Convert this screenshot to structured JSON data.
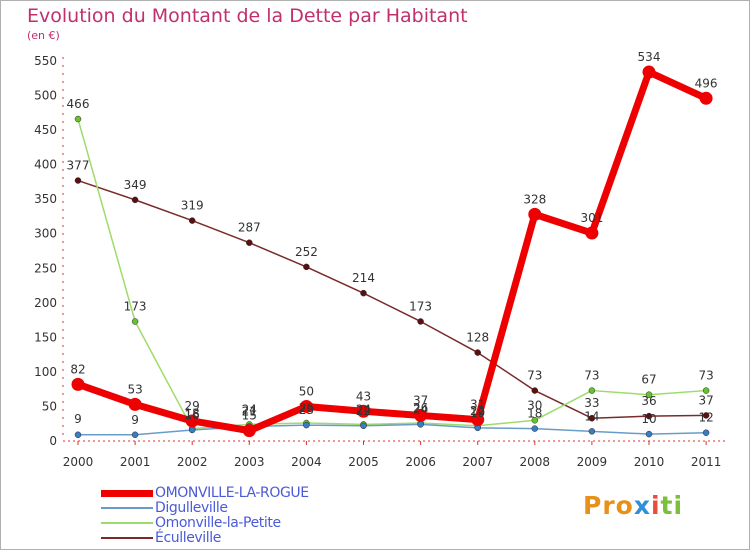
{
  "chart_data": {
    "type": "line",
    "title": "Evolution du Montant de la Dette par Habitant",
    "subtitle": "(en €)",
    "xlabel": "",
    "ylabel": "",
    "categories": [
      "2000",
      "2001",
      "2002",
      "2003",
      "2004",
      "2005",
      "2006",
      "2007",
      "2008",
      "2009",
      "2010",
      "2011"
    ],
    "ylim": [
      0,
      550
    ],
    "yticks": [
      0,
      50,
      100,
      150,
      200,
      250,
      300,
      350,
      400,
      450,
      500,
      550
    ],
    "grid": false,
    "legend_position": "bottom-left",
    "series": [
      {
        "name": "Éculleville",
        "color": "#7a2a2a",
        "marker": "#5a1010",
        "width": 1.5,
        "values": [
          377,
          349,
          319,
          287,
          252,
          214,
          173,
          128,
          73,
          33,
          36,
          37
        ]
      },
      {
        "name": "Omonville-la-Petite",
        "color": "#9edc6a",
        "marker": "#66c22e",
        "width": 1.5,
        "values": [
          466,
          173,
          18,
          24,
          26,
          24,
          26,
          22,
          30,
          73,
          67,
          73
        ]
      },
      {
        "name": "Digulleville",
        "color": "#6a9cc8",
        "marker": "#3a7cc0",
        "width": 1.5,
        "values": [
          9,
          9,
          16,
          21,
          23,
          22,
          24,
          19,
          18,
          14,
          10,
          12
        ]
      },
      {
        "name": "OMONVILLE-LA-ROGUE",
        "color": "#ee0000",
        "marker": "#ee0000",
        "width": 7,
        "values": [
          82,
          53,
          29,
          15,
          50,
          43,
          37,
          31,
          328,
          301,
          534,
          496
        ]
      }
    ],
    "data_labels": [
      {
        "series": 0,
        "index": 0,
        "text": "377"
      },
      {
        "series": 0,
        "index": 1,
        "text": "349"
      },
      {
        "series": 0,
        "index": 2,
        "text": "319"
      },
      {
        "series": 0,
        "index": 3,
        "text": "287"
      },
      {
        "series": 0,
        "index": 4,
        "text": "252"
      },
      {
        "series": 0,
        "index": 5,
        "text": "214"
      },
      {
        "series": 0,
        "index": 6,
        "text": "173"
      },
      {
        "series": 0,
        "index": 7,
        "text": "128"
      },
      {
        "series": 0,
        "index": 8,
        "text": "73"
      },
      {
        "series": 0,
        "index": 9,
        "text": "33"
      },
      {
        "series": 0,
        "index": 10,
        "text": "36"
      },
      {
        "series": 0,
        "index": 11,
        "text": "37"
      },
      {
        "series": 1,
        "index": 0,
        "text": "466"
      },
      {
        "series": 1,
        "index": 1,
        "text": "173"
      },
      {
        "series": 1,
        "index": 2,
        "text": "18"
      },
      {
        "series": 1,
        "index": 3,
        "text": "24"
      },
      {
        "series": 1,
        "index": 4,
        "text": "26"
      },
      {
        "series": 1,
        "index": 5,
        "text": "24"
      },
      {
        "series": 1,
        "index": 6,
        "text": "26"
      },
      {
        "series": 1,
        "index": 7,
        "text": "22"
      },
      {
        "series": 1,
        "index": 8,
        "text": "30"
      },
      {
        "series": 1,
        "index": 9,
        "text": "73"
      },
      {
        "series": 1,
        "index": 10,
        "text": "67"
      },
      {
        "series": 1,
        "index": 11,
        "text": "73"
      },
      {
        "series": 2,
        "index": 0,
        "text": "9"
      },
      {
        "series": 2,
        "index": 1,
        "text": "9"
      },
      {
        "series": 2,
        "index": 2,
        "text": "16"
      },
      {
        "series": 2,
        "index": 3,
        "text": "21"
      },
      {
        "series": 2,
        "index": 4,
        "text": "23"
      },
      {
        "series": 2,
        "index": 5,
        "text": "22"
      },
      {
        "series": 2,
        "index": 6,
        "text": "24"
      },
      {
        "series": 2,
        "index": 7,
        "text": "19"
      },
      {
        "series": 2,
        "index": 8,
        "text": "18"
      },
      {
        "series": 2,
        "index": 9,
        "text": "14"
      },
      {
        "series": 2,
        "index": 10,
        "text": "10"
      },
      {
        "series": 2,
        "index": 11,
        "text": "12"
      },
      {
        "series": 3,
        "index": 0,
        "text": "82"
      },
      {
        "series": 3,
        "index": 1,
        "text": "53"
      },
      {
        "series": 3,
        "index": 2,
        "text": "29"
      },
      {
        "series": 3,
        "index": 3,
        "text": "15"
      },
      {
        "series": 3,
        "index": 4,
        "text": "50"
      },
      {
        "series": 3,
        "index": 5,
        "text": "43"
      },
      {
        "series": 3,
        "index": 6,
        "text": "37"
      },
      {
        "series": 3,
        "index": 7,
        "text": "31"
      },
      {
        "series": 3,
        "index": 8,
        "text": "328"
      },
      {
        "series": 3,
        "index": 9,
        "text": "301"
      },
      {
        "series": 3,
        "index": 10,
        "text": "534"
      },
      {
        "series": 3,
        "index": 11,
        "text": "496"
      }
    ]
  },
  "legend": {
    "items": [
      {
        "label": "OMONVILLE-LA-ROGUE",
        "color": "#ee0000"
      },
      {
        "label": "Digulleville",
        "color": "#6a9cc8"
      },
      {
        "label": "Omonville-la-Petite",
        "color": "#9edc6a"
      },
      {
        "label": "Éculleville",
        "color": "#7a2a2a"
      }
    ]
  },
  "logo": {
    "part1": "Pro",
    "part2": "x",
    "part3": "i",
    "part4": "ti"
  },
  "colors": {
    "title": "#c0306e",
    "axis_text": "#333333",
    "label_text": "#333333"
  }
}
